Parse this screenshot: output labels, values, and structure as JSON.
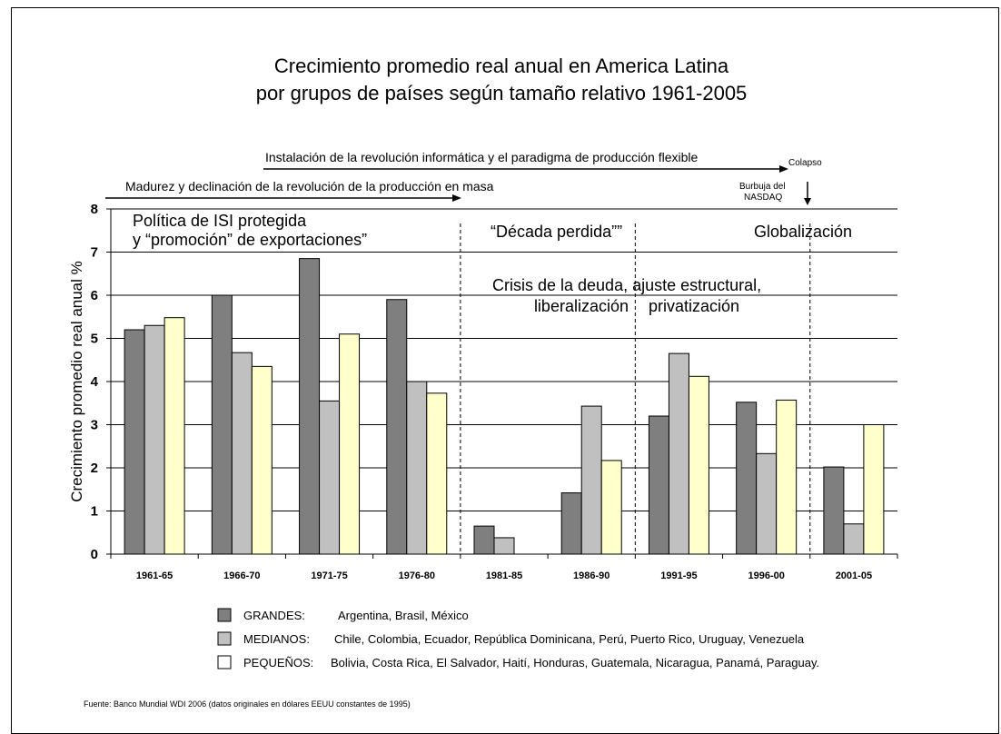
{
  "chart_data": {
    "type": "bar",
    "title_lines": [
      "Crecimiento promedio real anual en America Latina",
      "por grupos de países según tamaño relativo 1961-2005"
    ],
    "ylabel": "Crecimiento promedio real anual %",
    "xlabel": "",
    "ylim": [
      0,
      8
    ],
    "yticks": [
      "0",
      "1",
      "2",
      "3",
      "4",
      "5",
      "6",
      "7",
      "8"
    ],
    "grid": true,
    "categories": [
      "1961-65",
      "1966-70",
      "1971-75",
      "1976-80",
      "1981-85",
      "1986-90",
      "1991-95",
      "1996-00",
      "2001-05"
    ],
    "series": [
      {
        "name": "GRANDES:",
        "color": "#7f7f7f",
        "values": [
          5.2,
          6.0,
          6.85,
          5.9,
          0.65,
          1.42,
          3.2,
          3.52,
          2.02
        ]
      },
      {
        "name": "MEDIANOS:",
        "color": "#c0c0c0",
        "values": [
          5.3,
          4.67,
          3.55,
          4.0,
          0.38,
          3.43,
          4.65,
          2.33,
          0.7
        ]
      },
      {
        "name": "PEQUEÑOS:",
        "color": "#ffffcc",
        "values": [
          5.48,
          4.35,
          5.1,
          3.73,
          null,
          2.17,
          4.12,
          3.57,
          3.0
        ]
      }
    ],
    "legend": {
      "placement": "bottom",
      "entries": [
        {
          "name": "GRANDES:",
          "countries": "Argentina, Brasil, México"
        },
        {
          "name": "MEDIANOS:",
          "countries": "Chile, Colombia, Ecuador, República Dominicana, Perú, Puerto Rico, Uruguay, Venezuela"
        },
        {
          "name": "PEQUEÑOS:",
          "countries": "Bolivia, Costa Rica, El Salvador, Haití, Honduras, Guatemala, Nicaragua, Panamá, Paraguay."
        }
      ]
    },
    "annotations": {
      "arrow_top": "Instalación de la revolución informática y el paradigma de producción flexible",
      "colapso": "Colapso",
      "arrow_lower": "Madurez y declinación de la revolución de la producción en masa",
      "burbuja_line1": "Burbuja del",
      "burbuja_line2": "NASDAQ",
      "era1_line1": "Política de ISI protegida",
      "era1_line2": "y “promoción” de exportaciones”",
      "era2": "“Década perdida””",
      "era3": "Globalización",
      "crisis_line1": "Crisis de la deuda, ajuste estructural,",
      "crisis_line2a": "liberalización",
      "crisis_line2b": "privatización"
    },
    "dividers_after_category": [
      "1976-80",
      "1986-90",
      "1996-00"
    ]
  },
  "source": "Fuente: Banco Mundial WDI 2006 (datos originales en dólares EEUU constantes de 1995)"
}
